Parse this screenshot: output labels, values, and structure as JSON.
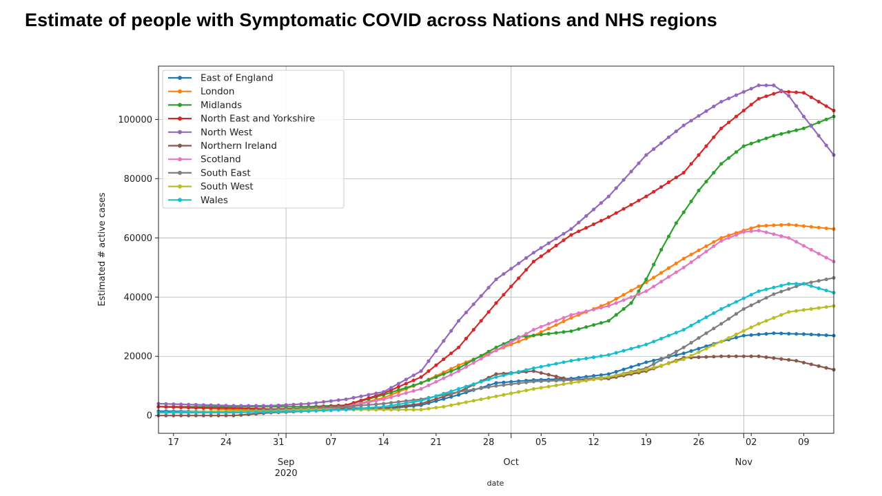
{
  "page": {
    "title": "Estimate of people with Symptomatic COVID across Nations and NHS regions"
  },
  "chart_data": {
    "type": "line",
    "title": "Estimate of people with Symptomatic COVID across Nations and NHS regions",
    "xlabel": "date",
    "ylabel": "Estimated # active cases",
    "x_start": "2020-08-14",
    "x_end": "2020-11-12",
    "xlim_days": [
      0,
      90
    ],
    "ylim": [
      -6000,
      118000
    ],
    "grid": true,
    "markers": true,
    "legend_position": "upper-left",
    "y_ticks": [
      {
        "value": 0,
        "label": "0"
      },
      {
        "value": 20000,
        "label": "20000"
      },
      {
        "value": 40000,
        "label": "40000"
      },
      {
        "value": 60000,
        "label": "60000"
      },
      {
        "value": 80000,
        "label": "80000"
      },
      {
        "value": 100000,
        "label": "100000"
      }
    ],
    "x_minor_ticks": [
      {
        "day": 2,
        "label": "17"
      },
      {
        "day": 9,
        "label": "24"
      },
      {
        "day": 16,
        "label": "31"
      },
      {
        "day": 23,
        "label": "07"
      },
      {
        "day": 30,
        "label": "14"
      },
      {
        "day": 37,
        "label": "21"
      },
      {
        "day": 44,
        "label": "28"
      },
      {
        "day": 51,
        "label": "05"
      },
      {
        "day": 58,
        "label": "12"
      },
      {
        "day": 65,
        "label": "19"
      },
      {
        "day": 72,
        "label": "26"
      },
      {
        "day": 79,
        "label": "02"
      },
      {
        "day": 86,
        "label": "09"
      }
    ],
    "x_major_ticks": [
      {
        "day": 17,
        "label": "Sep",
        "sublabel": "2020"
      },
      {
        "day": 47,
        "label": "Oct",
        "sublabel": ""
      },
      {
        "day": 78,
        "label": "Nov",
        "sublabel": ""
      }
    ],
    "series": [
      {
        "name": "East of England",
        "color": "#1f77b4",
        "points": [
          [
            0,
            1500
          ],
          [
            10,
            1200
          ],
          [
            20,
            1800
          ],
          [
            30,
            2200
          ],
          [
            35,
            3500
          ],
          [
            40,
            7000
          ],
          [
            45,
            11000
          ],
          [
            50,
            12000
          ],
          [
            55,
            12500
          ],
          [
            60,
            14000
          ],
          [
            65,
            18000
          ],
          [
            70,
            21000
          ],
          [
            75,
            25000
          ],
          [
            78,
            27000
          ],
          [
            82,
            27800
          ],
          [
            86,
            27500
          ],
          [
            90,
            27000
          ]
        ]
      },
      {
        "name": "London",
        "color": "#ff7f0e",
        "points": [
          [
            0,
            3000
          ],
          [
            5,
            2600
          ],
          [
            10,
            2000
          ],
          [
            15,
            2000
          ],
          [
            20,
            2500
          ],
          [
            25,
            3000
          ],
          [
            30,
            6000
          ],
          [
            35,
            11000
          ],
          [
            40,
            17000
          ],
          [
            45,
            22000
          ],
          [
            50,
            27000
          ],
          [
            55,
            33000
          ],
          [
            60,
            38000
          ],
          [
            65,
            45000
          ],
          [
            70,
            53000
          ],
          [
            75,
            60000
          ],
          [
            78,
            62500
          ],
          [
            80,
            64000
          ],
          [
            84,
            64500
          ],
          [
            90,
            63000
          ]
        ]
      },
      {
        "name": "Midlands",
        "color": "#2ca02c",
        "points": [
          [
            0,
            3000
          ],
          [
            10,
            3000
          ],
          [
            20,
            3000
          ],
          [
            25,
            3500
          ],
          [
            30,
            7000
          ],
          [
            35,
            11000
          ],
          [
            40,
            16000
          ],
          [
            45,
            23000
          ],
          [
            48,
            26500
          ],
          [
            55,
            28500
          ],
          [
            60,
            32000
          ],
          [
            63,
            38000
          ],
          [
            65,
            46000
          ],
          [
            67,
            56000
          ],
          [
            69,
            65000
          ],
          [
            72,
            76000
          ],
          [
            75,
            85000
          ],
          [
            78,
            91000
          ],
          [
            82,
            94500
          ],
          [
            86,
            97000
          ],
          [
            90,
            101000
          ]
        ]
      },
      {
        "name": "North East and Yorkshire",
        "color": "#d62728",
        "points": [
          [
            0,
            3000
          ],
          [
            5,
            2600
          ],
          [
            10,
            2500
          ],
          [
            15,
            2200
          ],
          [
            20,
            2500
          ],
          [
            25,
            3500
          ],
          [
            30,
            7500
          ],
          [
            35,
            13000
          ],
          [
            40,
            23000
          ],
          [
            45,
            38000
          ],
          [
            50,
            52000
          ],
          [
            55,
            61000
          ],
          [
            60,
            67000
          ],
          [
            65,
            74000
          ],
          [
            70,
            82000
          ],
          [
            75,
            97000
          ],
          [
            80,
            107000
          ],
          [
            83,
            109500
          ],
          [
            86,
            109000
          ],
          [
            90,
            103000
          ]
        ]
      },
      {
        "name": "North West",
        "color": "#9467bd",
        "points": [
          [
            0,
            4000
          ],
          [
            10,
            3300
          ],
          [
            15,
            3300
          ],
          [
            20,
            4000
          ],
          [
            25,
            5500
          ],
          [
            30,
            8000
          ],
          [
            35,
            15000
          ],
          [
            40,
            32000
          ],
          [
            45,
            46000
          ],
          [
            50,
            55000
          ],
          [
            55,
            63000
          ],
          [
            60,
            74000
          ],
          [
            65,
            88000
          ],
          [
            70,
            98000
          ],
          [
            75,
            106000
          ],
          [
            80,
            111500
          ],
          [
            82,
            111500
          ],
          [
            84,
            108000
          ],
          [
            86,
            101000
          ],
          [
            90,
            88000
          ]
        ]
      },
      {
        "name": "Northern Ireland",
        "color": "#8c564b",
        "points": [
          [
            0,
            0
          ],
          [
            5,
            0
          ],
          [
            10,
            0
          ],
          [
            15,
            1000
          ],
          [
            20,
            1500
          ],
          [
            25,
            2500
          ],
          [
            30,
            2500
          ],
          [
            35,
            4000
          ],
          [
            40,
            8000
          ],
          [
            45,
            14000
          ],
          [
            50,
            15000
          ],
          [
            55,
            12000
          ],
          [
            60,
            12500
          ],
          [
            65,
            15000
          ],
          [
            70,
            19500
          ],
          [
            75,
            20000
          ],
          [
            80,
            20000
          ],
          [
            85,
            18500
          ],
          [
            90,
            15500
          ]
        ]
      },
      {
        "name": "Scotland",
        "color": "#e377c2",
        "points": [
          [
            0,
            1000
          ],
          [
            10,
            1000
          ],
          [
            15,
            1500
          ],
          [
            20,
            2000
          ],
          [
            25,
            3000
          ],
          [
            30,
            5500
          ],
          [
            35,
            9000
          ],
          [
            40,
            15000
          ],
          [
            45,
            22000
          ],
          [
            50,
            29000
          ],
          [
            55,
            34000
          ],
          [
            60,
            37000
          ],
          [
            65,
            42000
          ],
          [
            70,
            50000
          ],
          [
            75,
            59000
          ],
          [
            78,
            62000
          ],
          [
            80,
            62500
          ],
          [
            84,
            60000
          ],
          [
            90,
            52000
          ]
        ]
      },
      {
        "name": "South East",
        "color": "#7f7f7f",
        "points": [
          [
            0,
            1000
          ],
          [
            10,
            1500
          ],
          [
            15,
            2000
          ],
          [
            20,
            2500
          ],
          [
            25,
            3000
          ],
          [
            30,
            4000
          ],
          [
            35,
            5500
          ],
          [
            40,
            8000
          ],
          [
            45,
            10000
          ],
          [
            50,
            11500
          ],
          [
            55,
            12000
          ],
          [
            60,
            13000
          ],
          [
            65,
            16000
          ],
          [
            70,
            23000
          ],
          [
            75,
            31000
          ],
          [
            78,
            36000
          ],
          [
            82,
            41000
          ],
          [
            86,
            44500
          ],
          [
            90,
            46500
          ]
        ]
      },
      {
        "name": "South West",
        "color": "#bcbd22",
        "points": [
          [
            0,
            1000
          ],
          [
            10,
            1500
          ],
          [
            15,
            1500
          ],
          [
            20,
            2000
          ],
          [
            25,
            2000
          ],
          [
            30,
            2000
          ],
          [
            35,
            2000
          ],
          [
            38,
            3000
          ],
          [
            42,
            5000
          ],
          [
            46,
            7000
          ],
          [
            50,
            9000
          ],
          [
            55,
            11000
          ],
          [
            60,
            13000
          ],
          [
            65,
            15500
          ],
          [
            70,
            19000
          ],
          [
            75,
            25000
          ],
          [
            80,
            31000
          ],
          [
            84,
            35000
          ],
          [
            90,
            37000
          ]
        ]
      },
      {
        "name": "Wales",
        "color": "#17becf",
        "points": [
          [
            0,
            1000
          ],
          [
            10,
            1000
          ],
          [
            20,
            1500
          ],
          [
            25,
            2000
          ],
          [
            30,
            3000
          ],
          [
            35,
            5000
          ],
          [
            40,
            9000
          ],
          [
            45,
            13000
          ],
          [
            50,
            16000
          ],
          [
            55,
            18500
          ],
          [
            60,
            20500
          ],
          [
            65,
            24000
          ],
          [
            70,
            29000
          ],
          [
            75,
            36000
          ],
          [
            80,
            42000
          ],
          [
            84,
            44500
          ],
          [
            86,
            44500
          ],
          [
            90,
            41500
          ]
        ]
      }
    ]
  }
}
